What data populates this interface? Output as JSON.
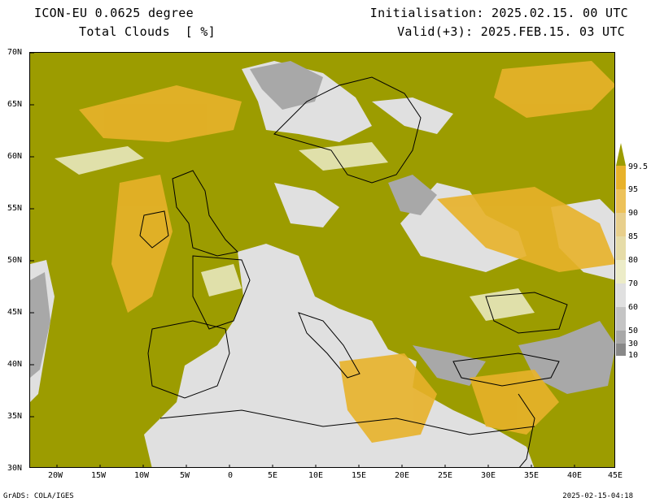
{
  "header": {
    "model": "ICON-EU 0.0625 degree",
    "variable": "Total Clouds  [ %]",
    "initialisation": "Initialisation: 2025.02.15. 00 UTC",
    "valid": "Valid(+3): 2025.FEB.15. 03 UTC"
  },
  "axes": {
    "lat_labels": [
      "70N",
      "65N",
      "60N",
      "55N",
      "50N",
      "45N",
      "40N",
      "35N",
      "30N"
    ],
    "lon_labels": [
      "20W",
      "15W",
      "10W",
      "5W",
      "0",
      "5E",
      "10E",
      "15E",
      "20E",
      "25E",
      "30E",
      "35E",
      "40E",
      "45E"
    ],
    "lat_range": [
      30,
      70
    ],
    "lon_range": [
      -23.5,
      45
    ]
  },
  "colorbar": {
    "levels": [
      "99.5",
      "95",
      "90",
      "85",
      "80",
      "70",
      "60",
      "50",
      "30",
      "10"
    ],
    "colors": [
      "#9c9c00",
      "#e8b22a",
      "#edc25a",
      "#e8cf8c",
      "#e6dca8",
      "#ececc8",
      "#e0e0e0",
      "#c4c4c4",
      "#a8a8a8",
      "#888888",
      "#606060"
    ]
  },
  "palette": {
    "overcast": "#9c9c00",
    "clear": "#e0e0e0",
    "mid": "#e8b22a"
  },
  "footer": {
    "left": "GrADS: COLA/IGES",
    "right": "2025-02-15-04:18"
  }
}
